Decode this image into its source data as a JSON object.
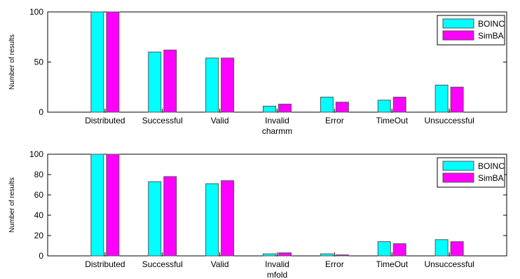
{
  "legend": {
    "series": [
      "BOINC",
      "SimBA"
    ]
  },
  "colors": {
    "BOINC": "#00ffff",
    "SimBA": "#ff00ff"
  },
  "chart_data": [
    {
      "type": "bar",
      "ylabel": "Number of results",
      "ylim": [
        0,
        100
      ],
      "yticks": [
        0,
        50,
        100
      ],
      "categories": [
        [
          "Distributed"
        ],
        [
          "Successful"
        ],
        [
          "Valid"
        ],
        [
          "Invalid",
          "charmm"
        ],
        [
          "Error"
        ],
        [
          "TimeOut"
        ],
        [
          "Unsuccessful"
        ]
      ],
      "series": [
        {
          "name": "BOINC",
          "values": [
            100,
            60,
            54,
            6,
            15,
            12,
            27
          ]
        },
        {
          "name": "SimBA",
          "values": [
            100,
            62,
            54,
            8,
            10,
            15,
            25
          ]
        }
      ],
      "legend_position": "top-right",
      "grid": false
    },
    {
      "type": "bar",
      "ylabel": "Number of results",
      "ylim": [
        0,
        100
      ],
      "yticks": [
        0,
        20,
        40,
        60,
        80,
        100
      ],
      "categories": [
        [
          "Distributed"
        ],
        [
          "Successful"
        ],
        [
          "Valid"
        ],
        [
          "Invalid",
          "mfold"
        ],
        [
          "Error"
        ],
        [
          "TimeOut"
        ],
        [
          "Unsuccessful"
        ]
      ],
      "series": [
        {
          "name": "BOINC",
          "values": [
            100,
            73,
            71,
            2,
            2,
            14,
            16
          ]
        },
        {
          "name": "SimBA",
          "values": [
            100,
            78,
            74,
            3,
            1,
            12,
            14
          ]
        }
      ],
      "legend_position": "top-right",
      "grid": false
    }
  ]
}
